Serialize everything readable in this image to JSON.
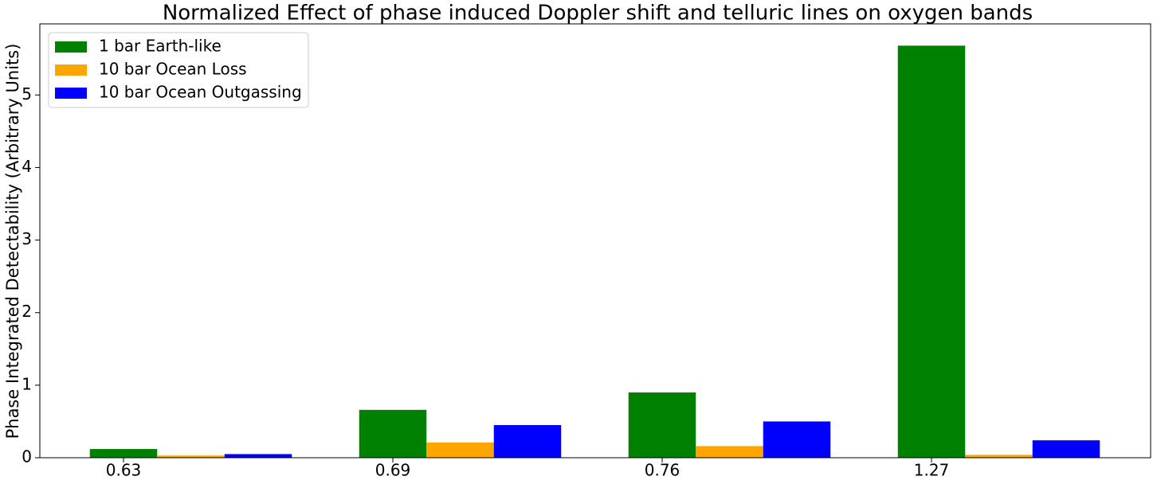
{
  "chart_data": {
    "type": "bar",
    "title": "Normalized Effect of phase induced Doppler shift and telluric lines on oxygen bands",
    "y_label": "Phase Integrated Detectability (Arbitrary Units)",
    "categories": [
      "0.63",
      "0.69",
      "0.76",
      "1.27"
    ],
    "series": [
      {
        "name": "1 bar Earth-like",
        "color": "#008000",
        "values": [
          0.12,
          0.66,
          0.9,
          5.68
        ]
      },
      {
        "name": "10 bar Ocean Loss",
        "color": "#ffa500",
        "values": [
          0.03,
          0.21,
          0.16,
          0.04
        ]
      },
      {
        "name": "10 bar Ocean Outgassing",
        "color": "#0000ff",
        "values": [
          0.05,
          0.45,
          0.5,
          0.24
        ]
      }
    ],
    "ylim": [
      0,
      5.98
    ],
    "yticks": [
      0,
      1,
      2,
      3,
      4,
      5
    ],
    "legend": "upper left"
  }
}
